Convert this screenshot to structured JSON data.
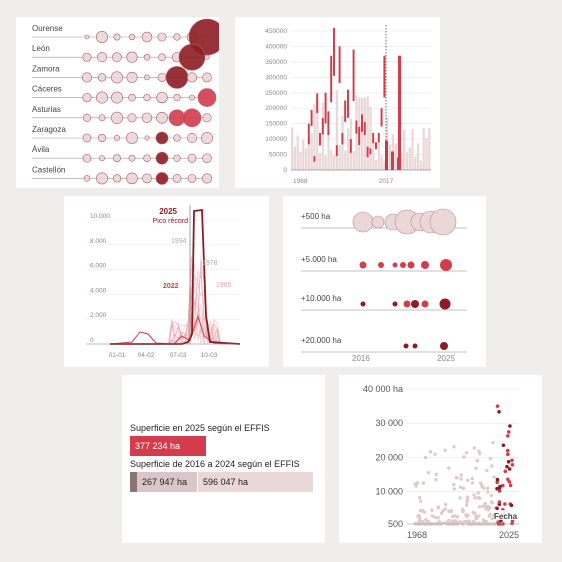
{
  "colors": {
    "dark": "#8c1c24",
    "mid": "#d33c4b",
    "light": "#e8a3ac",
    "pale": "#ead7d8",
    "grid": "#bbbbbb"
  },
  "panel1": {
    "regions": [
      "Ourense",
      "León",
      "Zamora",
      "Cáceres",
      "Asturias",
      "Zaragoza",
      "Ávila",
      "Castellón"
    ]
  },
  "panel2": {
    "chart_data": {
      "type": "bar",
      "ylim": [
        0,
        450000
      ],
      "y_ticks": [
        "450000",
        "400000",
        "350000",
        "300000",
        "250000",
        "200000",
        "150000",
        "100000",
        "50000",
        "0"
      ],
      "x_ticks": [
        "1968",
        "2017"
      ],
      "marker_year": "2017",
      "annual_hectares": [
        150000,
        195000,
        45000,
        248000,
        120000,
        168000,
        250000,
        190000,
        370000,
        460000,
        80000,
        400000,
        120000,
        225000,
        260000,
        100000,
        390000,
        160000,
        140000,
        180000,
        155000,
        75000,
        70000,
        120000,
        90000,
        120000,
        200000,
        370000
      ]
    }
  },
  "panel3": {
    "chart_data": {
      "type": "line",
      "y_ticks": [
        "10.000",
        "8.000",
        "6.000",
        "4.000",
        "2.000",
        "0"
      ],
      "x_ticks": [
        "01-01",
        "04-02",
        "07-03",
        "10-03"
      ],
      "series_labels": {
        "y2025": "2025",
        "peak": "Pico récord",
        "y1994": "1994",
        "y1978": "1978",
        "y2022": "2022",
        "y1985": "1985"
      }
    }
  },
  "panel4": {
    "chart_data": {
      "type": "scatter",
      "rows": [
        "+500 ha",
        "+5.000 ha",
        "+10.000 ha",
        "+20.000 ha"
      ],
      "x_ticks": [
        "2016",
        "2025"
      ]
    }
  },
  "panel5": {
    "chart_data": {
      "type": "bar",
      "label_2025": "Superficie en 2025 según el EFFIS",
      "value_2025": "377 234 ha",
      "label_2016_2024": "Superficie de 2016 a 2024 según el EFFIS",
      "value_a": "267 947 ha",
      "value_b": "596 047 ha"
    }
  },
  "panel6": {
    "chart_data": {
      "type": "scatter",
      "y_ticks": [
        "40 000 ha",
        "30 000",
        "20 000",
        "10 000",
        "500"
      ],
      "x_ticks": [
        "1968",
        "2025"
      ],
      "tooltip": "Fecha"
    }
  }
}
